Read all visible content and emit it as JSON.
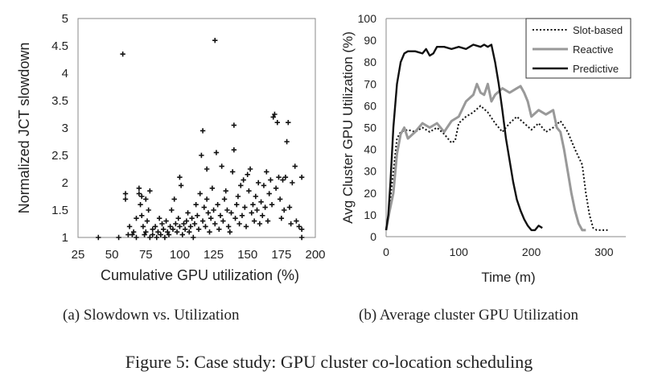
{
  "figure": {
    "caption": "Figure 5: Case study: GPU cluster co-location scheduling",
    "subcaptions": [
      "(a) Slowdown vs. Utilization",
      "(b) Average cluster GPU Utilization"
    ]
  },
  "chart_data": [
    {
      "type": "scatter",
      "xlabel": "Cumulative GPU utilization (%)",
      "ylabel": "Normalized JCT slowdown",
      "xlim": [
        25,
        200
      ],
      "ylim": [
        1,
        5
      ],
      "xticks": [
        "25",
        "50",
        "75",
        "100",
        "125",
        "150",
        "175",
        "200"
      ],
      "yticks": [
        "1",
        "1.5",
        "2",
        "2.5",
        "3",
        "3.5",
        "4",
        "4.5",
        "5"
      ],
      "grid": false,
      "marker": "+",
      "color": "#111111",
      "points": [
        [
          40,
          1.0
        ],
        [
          55,
          1.0
        ],
        [
          58,
          4.35
        ],
        [
          60,
          1.8
        ],
        [
          60,
          1.7
        ],
        [
          62,
          1.05
        ],
        [
          63,
          1.2
        ],
        [
          65,
          1.05
        ],
        [
          66,
          1.1
        ],
        [
          68,
          1.0
        ],
        [
          68,
          1.35
        ],
        [
          70,
          1.9
        ],
        [
          70,
          1.8
        ],
        [
          71,
          1.6
        ],
        [
          72,
          1.75
        ],
        [
          72,
          1.4
        ],
        [
          73,
          1.2
        ],
        [
          74,
          1.05
        ],
        [
          75,
          1.7
        ],
        [
          75,
          1.1
        ],
        [
          76,
          1.3
        ],
        [
          77,
          1.5
        ],
        [
          78,
          1.0
        ],
        [
          78,
          1.85
        ],
        [
          80,
          1.15
        ],
        [
          80,
          1.05
        ],
        [
          82,
          1.2
        ],
        [
          83,
          1.0
        ],
        [
          84,
          1.1
        ],
        [
          85,
          1.35
        ],
        [
          86,
          1.05
        ],
        [
          87,
          1.25
        ],
        [
          88,
          1.15
        ],
        [
          89,
          1.0
        ],
        [
          90,
          1.3
        ],
        [
          91,
          1.1
        ],
        [
          92,
          1.05
        ],
        [
          93,
          1.2
        ],
        [
          94,
          1.5
        ],
        [
          95,
          1.15
        ],
        [
          96,
          1.7
        ],
        [
          97,
          1.25
        ],
        [
          98,
          1.1
        ],
        [
          99,
          1.35
        ],
        [
          100,
          2.1
        ],
        [
          100,
          1.2
        ],
        [
          101,
          1.95
        ],
        [
          102,
          1.05
        ],
        [
          103,
          1.25
        ],
        [
          104,
          1.15
        ],
        [
          105,
          1.3
        ],
        [
          106,
          1.45
        ],
        [
          107,
          1.1
        ],
        [
          108,
          1.2
        ],
        [
          109,
          1.35
        ],
        [
          110,
          1.0
        ],
        [
          111,
          1.25
        ],
        [
          112,
          1.6
        ],
        [
          113,
          1.4
        ],
        [
          114,
          1.15
        ],
        [
          115,
          1.8
        ],
        [
          116,
          2.5
        ],
        [
          117,
          2.95
        ],
        [
          117,
          1.3
        ],
        [
          118,
          1.55
        ],
        [
          119,
          1.2
        ],
        [
          120,
          2.25
        ],
        [
          120,
          1.7
        ],
        [
          121,
          1.45
        ],
        [
          122,
          1.1
        ],
        [
          123,
          1.35
        ],
        [
          124,
          1.9
        ],
        [
          125,
          1.5
        ],
        [
          126,
          4.6
        ],
        [
          126,
          1.25
        ],
        [
          127,
          2.55
        ],
        [
          128,
          1.6
        ],
        [
          129,
          1.15
        ],
        [
          130,
          1.4
        ],
        [
          131,
          2.3
        ],
        [
          132,
          1.3
        ],
        [
          133,
          1.7
        ],
        [
          134,
          1.85
        ],
        [
          135,
          1.5
        ],
        [
          136,
          1.2
        ],
        [
          137,
          1.1
        ],
        [
          138,
          1.45
        ],
        [
          139,
          2.2
        ],
        [
          140,
          2.6
        ],
        [
          140,
          3.05
        ],
        [
          141,
          1.35
        ],
        [
          142,
          1.6
        ],
        [
          143,
          1.75
        ],
        [
          144,
          1.25
        ],
        [
          145,
          1.95
        ],
        [
          146,
          1.4
        ],
        [
          147,
          2.05
        ],
        [
          148,
          1.55
        ],
        [
          149,
          1.2
        ],
        [
          150,
          2.15
        ],
        [
          151,
          1.85
        ],
        [
          152,
          2.25
        ],
        [
          153,
          1.45
        ],
        [
          154,
          1.6
        ],
        [
          155,
          1.3
        ],
        [
          156,
          1.75
        ],
        [
          157,
          1.5
        ],
        [
          158,
          2.0
        ],
        [
          159,
          1.25
        ],
        [
          160,
          1.65
        ],
        [
          161,
          1.4
        ],
        [
          162,
          1.95
        ],
        [
          163,
          1.55
        ],
        [
          164,
          2.2
        ],
        [
          165,
          1.3
        ],
        [
          166,
          1.8
        ],
        [
          167,
          2.05
        ],
        [
          168,
          1.6
        ],
        [
          169,
          3.2
        ],
        [
          170,
          3.25
        ],
        [
          171,
          1.9
        ],
        [
          172,
          3.1
        ],
        [
          173,
          2.1
        ],
        [
          174,
          1.7
        ],
        [
          175,
          1.35
        ],
        [
          176,
          2.05
        ],
        [
          177,
          1.5
        ],
        [
          178,
          2.1
        ],
        [
          179,
          2.75
        ],
        [
          180,
          3.1
        ],
        [
          181,
          1.55
        ],
        [
          182,
          1.25
        ],
        [
          183,
          2.0
        ],
        [
          185,
          2.3
        ],
        [
          186,
          1.3
        ],
        [
          188,
          1.2
        ],
        [
          190,
          2.1
        ],
        [
          190,
          1.0
        ],
        [
          190,
          1.15
        ]
      ]
    },
    {
      "type": "line",
      "xlabel": "Time (m)",
      "ylabel": "Avg Cluster GPU Utilization (%)",
      "xlim": [
        0,
        330
      ],
      "ylim": [
        0,
        100
      ],
      "xticks": [
        "0",
        "100",
        "200",
        "300"
      ],
      "yticks": [
        "0",
        "10",
        "20",
        "30",
        "40",
        "50",
        "60",
        "70",
        "80",
        "90",
        "100"
      ],
      "grid": false,
      "legend_position": "top-right",
      "series": [
        {
          "name": "Slot-based",
          "style": "dotted",
          "color": "#111111",
          "points": [
            [
              0,
              3
            ],
            [
              5,
              15
            ],
            [
              10,
              30
            ],
            [
              15,
              45
            ],
            [
              20,
              48
            ],
            [
              30,
              49
            ],
            [
              40,
              48
            ],
            [
              50,
              50
            ],
            [
              60,
              48
            ],
            [
              70,
              50
            ],
            [
              80,
              47
            ],
            [
              90,
              43
            ],
            [
              95,
              44
            ],
            [
              100,
              52
            ],
            [
              110,
              55
            ],
            [
              120,
              57
            ],
            [
              130,
              60
            ],
            [
              140,
              57
            ],
            [
              150,
              52
            ],
            [
              160,
              48
            ],
            [
              170,
              52
            ],
            [
              180,
              55
            ],
            [
              190,
              52
            ],
            [
              200,
              49
            ],
            [
              210,
              52
            ],
            [
              220,
              48
            ],
            [
              230,
              50
            ],
            [
              240,
              53
            ],
            [
              250,
              48
            ],
            [
              260,
              40
            ],
            [
              270,
              33
            ],
            [
              275,
              20
            ],
            [
              280,
              10
            ],
            [
              285,
              4
            ],
            [
              290,
              3
            ],
            [
              300,
              3
            ],
            [
              305,
              3
            ]
          ]
        },
        {
          "name": "Reactive",
          "style": "solid",
          "color": "#999999",
          "points": [
            [
              0,
              3
            ],
            [
              5,
              12
            ],
            [
              10,
              20
            ],
            [
              15,
              38
            ],
            [
              20,
              47
            ],
            [
              25,
              50
            ],
            [
              30,
              45
            ],
            [
              40,
              48
            ],
            [
              50,
              52
            ],
            [
              60,
              50
            ],
            [
              70,
              52
            ],
            [
              80,
              48
            ],
            [
              90,
              53
            ],
            [
              100,
              55
            ],
            [
              110,
              62
            ],
            [
              120,
              65
            ],
            [
              125,
              70
            ],
            [
              130,
              66
            ],
            [
              135,
              65
            ],
            [
              140,
              70
            ],
            [
              145,
              62
            ],
            [
              150,
              65
            ],
            [
              160,
              68
            ],
            [
              170,
              66
            ],
            [
              180,
              68
            ],
            [
              185,
              69
            ],
            [
              190,
              66
            ],
            [
              195,
              62
            ],
            [
              200,
              55
            ],
            [
              210,
              58
            ],
            [
              220,
              56
            ],
            [
              230,
              58
            ],
            [
              235,
              50
            ],
            [
              240,
              48
            ],
            [
              245,
              40
            ],
            [
              250,
              30
            ],
            [
              255,
              20
            ],
            [
              260,
              12
            ],
            [
              265,
              6
            ],
            [
              270,
              3
            ],
            [
              275,
              3
            ]
          ]
        },
        {
          "name": "Predictive",
          "style": "solid",
          "color": "#111111",
          "points": [
            [
              0,
              3
            ],
            [
              3,
              10
            ],
            [
              6,
              25
            ],
            [
              10,
              50
            ],
            [
              15,
              70
            ],
            [
              20,
              80
            ],
            [
              25,
              84
            ],
            [
              30,
              85
            ],
            [
              40,
              85
            ],
            [
              50,
              84
            ],
            [
              55,
              86
            ],
            [
              60,
              83
            ],
            [
              65,
              84
            ],
            [
              70,
              87
            ],
            [
              80,
              87
            ],
            [
              90,
              86
            ],
            [
              100,
              87
            ],
            [
              110,
              86
            ],
            [
              115,
              87
            ],
            [
              120,
              88
            ],
            [
              130,
              87
            ],
            [
              135,
              88
            ],
            [
              140,
              87
            ],
            [
              145,
              88
            ],
            [
              150,
              80
            ],
            [
              155,
              70
            ],
            [
              160,
              58
            ],
            [
              165,
              45
            ],
            [
              170,
              35
            ],
            [
              175,
              25
            ],
            [
              180,
              17
            ],
            [
              185,
              12
            ],
            [
              190,
              8
            ],
            [
              195,
              5
            ],
            [
              200,
              3
            ],
            [
              205,
              3
            ],
            [
              210,
              5
            ],
            [
              215,
              4
            ]
          ]
        }
      ]
    }
  ]
}
